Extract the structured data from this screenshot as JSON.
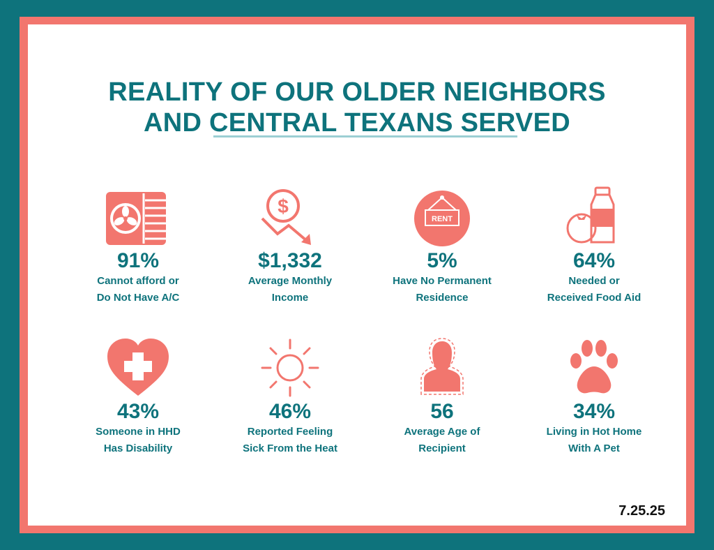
{
  "title": {
    "line1": "REALITY OF OUR OLDER NEIGHBORS",
    "line2": "AND CENTRAL TEXANS SERVED"
  },
  "stats": [
    {
      "value": "91%",
      "label1": "Cannot afford or",
      "label2": "Do Not Have A/C",
      "icon": "air-conditioner-icon"
    },
    {
      "value": "$1,332",
      "label1": "Average Monthly",
      "label2": "Income",
      "icon": "money-decline-icon"
    },
    {
      "value": "5%",
      "label1": "Have No Permanent",
      "label2": "Residence",
      "icon": "rent-sign-icon",
      "icon_text": "RENT"
    },
    {
      "value": "64%",
      "label1": "Needed or",
      "label2": "Received Food Aid",
      "icon": "food-aid-icon"
    },
    {
      "value": "43%",
      "label1": "Someone in HHD",
      "label2": "Has Disability",
      "icon": "heart-cross-icon"
    },
    {
      "value": "46%",
      "label1": "Reported Feeling",
      "label2": "Sick From the Heat",
      "icon": "sun-icon"
    },
    {
      "value": "56",
      "label1": "Average Age of",
      "label2": "Recipient",
      "icon": "person-icon"
    },
    {
      "value": "34%",
      "label1": "Living in Hot Home",
      "label2": "With A Pet",
      "icon": "paw-icon"
    }
  ],
  "date": "7.25.25",
  "colors": {
    "teal": "#0e737c",
    "coral": "#f2766e",
    "rule": "#9ccfd3"
  }
}
